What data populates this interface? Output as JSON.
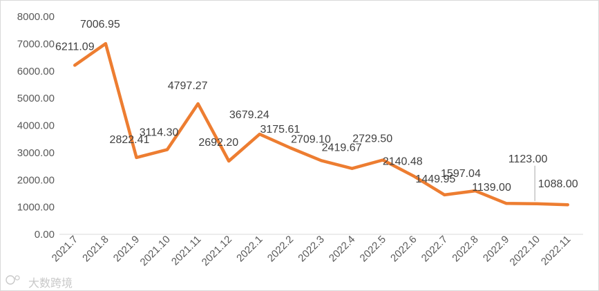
{
  "chart_data": {
    "type": "line",
    "categories": [
      "2021.7",
      "2021.8",
      "2021.9",
      "2021.10",
      "2021.11",
      "2021.12",
      "2022.1",
      "2022.2",
      "2022.3",
      "2022.4",
      "2022.5",
      "2022.6",
      "2022.7",
      "2022.8",
      "2022.9",
      "2022.10",
      "2022.11"
    ],
    "values": [
      6211.09,
      7006.95,
      2822.41,
      3114.3,
      4797.27,
      2692.2,
      3679.24,
      3175.61,
      2709.1,
      2419.67,
      2729.5,
      2140.48,
      1449.95,
      1597.04,
      1139.0,
      1123.0,
      1088.0
    ],
    "data_labels": [
      "6211.09",
      "7006.95",
      "2822.41",
      "3114.30",
      "4797.27",
      "2692.20",
      "3679.24",
      "3175.61",
      "2709.10",
      "2419.67",
      "2729.50",
      "2140.48",
      "1449.95",
      "1597.04",
      "1139.00",
      "1123.00",
      "1088.00"
    ],
    "y_tick_labels": [
      "0.00",
      "1000.00",
      "2000.00",
      "3000.00",
      "4000.00",
      "5000.00",
      "6000.00",
      "7000.00",
      "8000.00"
    ],
    "ylim": [
      0,
      8000
    ],
    "title": "",
    "xlabel": "",
    "ylabel": "",
    "grid": false,
    "legend": "none",
    "line_color": "#ED7D31"
  },
  "watermark": {
    "text": "大数跨境"
  }
}
